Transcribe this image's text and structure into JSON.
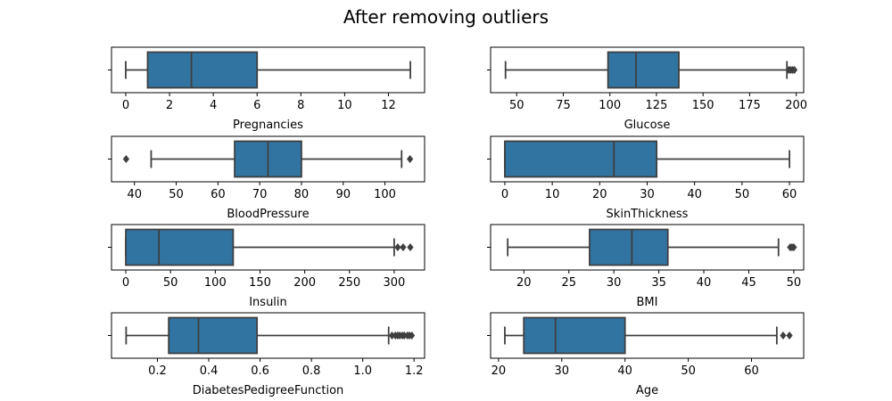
{
  "figure": {
    "title": "After removing outliers"
  },
  "colors": {
    "box_fill": "#3274a1",
    "line": "#3f3f3f",
    "frame": "#000000"
  },
  "chart_data": [
    {
      "type": "box",
      "xlabel": "Pregnancies",
      "xlim": [
        -0.65,
        13.65
      ],
      "ticks": [
        0,
        2,
        4,
        6,
        8,
        10,
        12
      ],
      "tick_labels": [
        "0",
        "2",
        "4",
        "6",
        "8",
        "10",
        "12"
      ],
      "whisker_low": 0,
      "q1": 1,
      "median": 3,
      "q3": 6,
      "whisker_high": 13,
      "outliers": []
    },
    {
      "type": "box",
      "xlabel": "Glucose",
      "xlim": [
        36,
        204
      ],
      "ticks": [
        50,
        75,
        100,
        125,
        150,
        175,
        200
      ],
      "tick_labels": [
        "50",
        "75",
        "100",
        "125",
        "150",
        "175",
        "200"
      ],
      "whisker_low": 44,
      "q1": 99,
      "median": 114,
      "q3": 137,
      "whisker_high": 195,
      "outliers": [
        196,
        197,
        198,
        199
      ]
    },
    {
      "type": "box",
      "xlabel": "BloodPressure",
      "xlim": [
        34.5,
        109.5
      ],
      "ticks": [
        40,
        50,
        60,
        70,
        80,
        90,
        100
      ],
      "tick_labels": [
        "40",
        "50",
        "60",
        "70",
        "80",
        "90",
        "100"
      ],
      "whisker_low": 44,
      "q1": 64,
      "median": 72,
      "q3": 80,
      "whisker_high": 104,
      "outliers": [
        38,
        106
      ]
    },
    {
      "type": "box",
      "xlabel": "SkinThickness",
      "xlim": [
        -3,
        63
      ],
      "ticks": [
        0,
        10,
        20,
        30,
        40,
        50,
        60
      ],
      "tick_labels": [
        "0",
        "10",
        "20",
        "30",
        "40",
        "50",
        "60"
      ],
      "whisker_low": 0,
      "q1": 0,
      "median": 23,
      "q3": 32,
      "whisker_high": 60,
      "outliers": []
    },
    {
      "type": "box",
      "xlabel": "Insulin",
      "xlim": [
        -16,
        334
      ],
      "ticks": [
        0,
        50,
        100,
        150,
        200,
        250,
        300
      ],
      "tick_labels": [
        "0",
        "50",
        "100",
        "150",
        "200",
        "250",
        "300"
      ],
      "whisker_low": 0,
      "q1": 0,
      "median": 37,
      "q3": 120,
      "whisker_high": 300,
      "outliers": [
        304,
        310,
        318
      ]
    },
    {
      "type": "box",
      "xlabel": "BMI",
      "xlim": [
        16.3,
        51.1
      ],
      "ticks": [
        20,
        25,
        30,
        35,
        40,
        45,
        50
      ],
      "tick_labels": [
        "20",
        "25",
        "30",
        "35",
        "40",
        "45",
        "50"
      ],
      "whisker_low": 18.2,
      "q1": 27.3,
      "median": 32,
      "q3": 36,
      "whisker_high": 48.3,
      "outliers": [
        49.6,
        49.8,
        50
      ]
    },
    {
      "type": "box",
      "xlabel": "DiabetesPedigreeFunction",
      "xlim": [
        0.021,
        1.241
      ],
      "ticks": [
        0.2,
        0.4,
        0.6,
        0.8,
        1.0,
        1.2
      ],
      "tick_labels": [
        "0.2",
        "0.4",
        "0.6",
        "0.8",
        "1.0",
        "1.2"
      ],
      "whisker_low": 0.078,
      "q1": 0.244,
      "median": 0.36,
      "q3": 0.588,
      "whisker_high": 1.101,
      "outliers": [
        1.114,
        1.127,
        1.136,
        1.144,
        1.154,
        1.162,
        1.174,
        1.182,
        1.191
      ]
    },
    {
      "type": "box",
      "xlabel": "Age",
      "xlim": [
        18.75,
        68.25
      ],
      "ticks": [
        20,
        30,
        40,
        50,
        60
      ],
      "tick_labels": [
        "20",
        "30",
        "40",
        "50",
        "60"
      ],
      "whisker_low": 21,
      "q1": 24,
      "median": 29,
      "q3": 40,
      "whisker_high": 64,
      "outliers": [
        65,
        66
      ]
    }
  ]
}
